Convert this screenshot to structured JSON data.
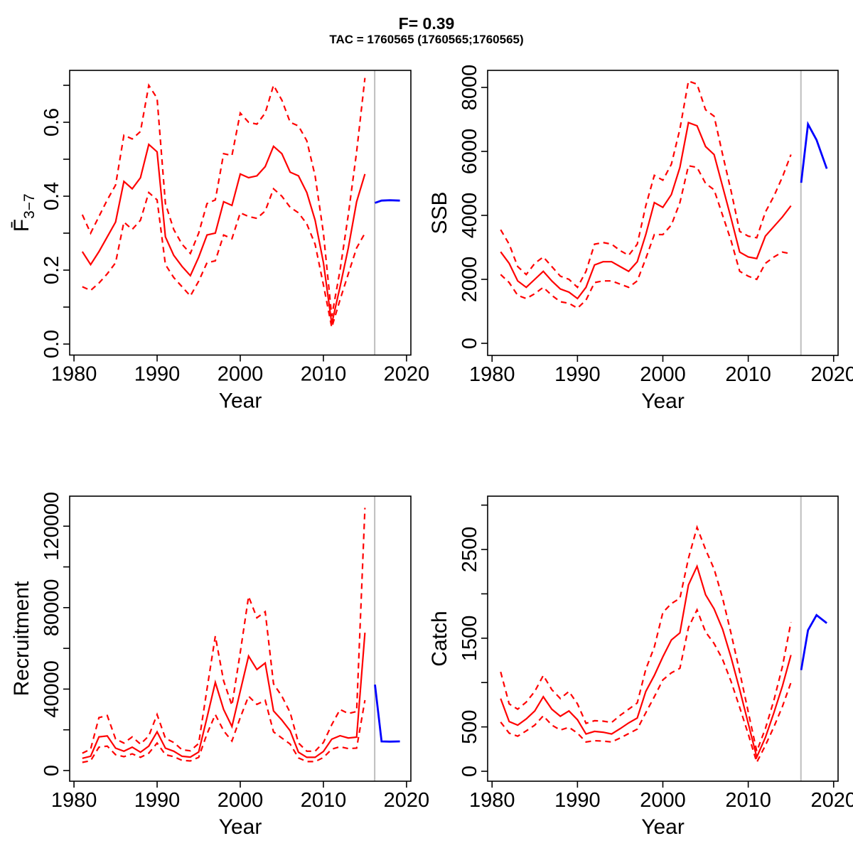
{
  "header": {
    "title": "F= 0.39",
    "subtitle": "TAC = 1760565 (1760565;1760565)"
  },
  "colors": {
    "assessment_red": "#ff0000",
    "forecast_blue": "#0000ff",
    "divider_gray": "#bebebe",
    "axis_black": "#000000",
    "background": "#ffffff"
  },
  "chart_data": [
    {
      "type": "line",
      "id": "f",
      "ylabel": "F̄",
      "ylabel_sub": "3−7",
      "xlabel": "Year",
      "legend": "none",
      "grid": "off",
      "xlim": [
        1979.48,
        2020.52
      ],
      "ylim": [
        -0.0298,
        0.7404
      ],
      "xticks": [
        1980,
        1990,
        2000,
        2010,
        2020
      ],
      "xtick_labels": [
        "1980",
        "1990",
        "2000",
        "2010",
        "2020"
      ],
      "yticks": [
        0,
        0.1,
        0.2,
        0.3,
        0.4,
        0.5,
        0.6,
        0.7
      ],
      "ytick_labels": [
        "0.0",
        "",
        "0.2",
        "",
        "0.4",
        "",
        "0.6",
        ""
      ],
      "divider_x": 2016.17,
      "years": [
        1981,
        1982,
        1983,
        1984,
        1985,
        1986,
        1987,
        1988,
        1989,
        1990,
        1991,
        1992,
        1993,
        1994,
        1995,
        1996,
        1997,
        1998,
        1999,
        2000,
        2001,
        2002,
        2003,
        2004,
        2005,
        2006,
        2007,
        2008,
        2009,
        2010,
        2011,
        2012,
        2013,
        2014,
        2015
      ],
      "series": [
        {
          "name": "median",
          "line": "solid",
          "color": "#ff0000",
          "values": [
            0.25,
            0.215,
            0.25,
            0.29,
            0.33,
            0.44,
            0.42,
            0.45,
            0.54,
            0.52,
            0.29,
            0.24,
            0.21,
            0.185,
            0.235,
            0.295,
            0.3,
            0.385,
            0.375,
            0.46,
            0.45,
            0.455,
            0.48,
            0.535,
            0.515,
            0.465,
            0.455,
            0.41,
            0.335,
            0.22,
            0.055,
            0.155,
            0.26,
            0.385,
            0.46
          ]
        },
        {
          "name": "lower-ci",
          "line": "dashed",
          "color": "#ff0000",
          "values": [
            0.155,
            0.145,
            0.165,
            0.19,
            0.22,
            0.33,
            0.31,
            0.335,
            0.41,
            0.39,
            0.215,
            0.18,
            0.155,
            0.13,
            0.17,
            0.22,
            0.225,
            0.295,
            0.285,
            0.355,
            0.345,
            0.34,
            0.36,
            0.42,
            0.4,
            0.37,
            0.355,
            0.325,
            0.27,
            0.16,
            0.045,
            0.12,
            0.19,
            0.26,
            0.3
          ]
        },
        {
          "name": "upper-ci",
          "line": "dashed",
          "color": "#ff0000",
          "values": [
            0.35,
            0.3,
            0.345,
            0.39,
            0.43,
            0.565,
            0.555,
            0.575,
            0.7,
            0.665,
            0.38,
            0.31,
            0.27,
            0.245,
            0.3,
            0.38,
            0.39,
            0.515,
            0.51,
            0.625,
            0.6,
            0.595,
            0.625,
            0.7,
            0.66,
            0.6,
            0.59,
            0.55,
            0.455,
            0.3,
            0.075,
            0.2,
            0.35,
            0.52,
            0.72
          ]
        }
      ],
      "projection": {
        "name": "forecast",
        "color": "#0000ff",
        "x": [
          2016.2,
          2017,
          2018,
          2019.2
        ],
        "values": [
          0.382,
          0.388,
          0.389,
          0.388
        ]
      }
    },
    {
      "type": "line",
      "id": "ssb",
      "ylabel": "SSB",
      "ylabel_sub": "",
      "xlabel": "Year",
      "legend": "none",
      "grid": "off",
      "xlim": [
        1979.48,
        2020.52
      ],
      "ylim": [
        -378,
        8533
      ],
      "xticks": [
        1980,
        1990,
        2000,
        2010,
        2020
      ],
      "xtick_labels": [
        "1980",
        "1990",
        "2000",
        "2010",
        "2020"
      ],
      "yticks": [
        0,
        2000,
        4000,
        6000,
        8000
      ],
      "ytick_labels": [
        "0",
        "2000",
        "4000",
        "6000",
        "8000"
      ],
      "divider_x": 2016.17,
      "years": [
        1981,
        1982,
        1983,
        1984,
        1985,
        1986,
        1987,
        1988,
        1989,
        1990,
        1991,
        1992,
        1993,
        1994,
        1995,
        1996,
        1997,
        1998,
        1999,
        2000,
        2001,
        2002,
        2003,
        2004,
        2005,
        2006,
        2007,
        2008,
        2009,
        2010,
        2011,
        2012,
        2013,
        2014,
        2015
      ],
      "series": [
        {
          "name": "median",
          "line": "solid",
          "color": "#ff0000",
          "values": [
            2860,
            2500,
            1950,
            1750,
            2000,
            2250,
            1950,
            1700,
            1600,
            1400,
            1750,
            2450,
            2550,
            2550,
            2400,
            2250,
            2550,
            3400,
            4400,
            4250,
            4650,
            5500,
            6900,
            6800,
            6150,
            5900,
            4900,
            3900,
            2850,
            2700,
            2650,
            3350,
            3650,
            3950,
            4300
          ]
        },
        {
          "name": "lower-ci",
          "line": "dashed",
          "color": "#ff0000",
          "values": [
            2150,
            1900,
            1500,
            1400,
            1550,
            1750,
            1500,
            1300,
            1250,
            1100,
            1350,
            1900,
            1950,
            1950,
            1850,
            1750,
            1950,
            2650,
            3400,
            3400,
            3700,
            4400,
            5550,
            5500,
            5000,
            4800,
            4000,
            3200,
            2250,
            2100,
            2000,
            2500,
            2700,
            2850,
            2800
          ]
        },
        {
          "name": "upper-ci",
          "line": "dashed",
          "color": "#ff0000",
          "values": [
            3550,
            3100,
            2400,
            2150,
            2500,
            2700,
            2400,
            2100,
            2000,
            1750,
            2250,
            3100,
            3150,
            3100,
            2900,
            2750,
            3100,
            4300,
            5250,
            5100,
            5600,
            6700,
            8200,
            8100,
            7300,
            7100,
            5900,
            4750,
            3500,
            3350,
            3300,
            4100,
            4600,
            5200,
            5900
          ]
        }
      ],
      "projection": {
        "name": "forecast",
        "color": "#0000ff",
        "x": [
          2016.2,
          2017,
          2018,
          2019.2
        ],
        "values": [
          5020,
          6850,
          6360,
          5460
        ]
      }
    },
    {
      "type": "line",
      "id": "rec",
      "ylabel": "Recruitment",
      "ylabel_sub": "",
      "xlabel": "Year",
      "legend": "none",
      "grid": "off",
      "xlim": [
        1979.48,
        2020.52
      ],
      "ylim": [
        -5236,
        134738
      ],
      "xticks": [
        1980,
        1990,
        2000,
        2010,
        2020
      ],
      "xtick_labels": [
        "1980",
        "1990",
        "2000",
        "2010",
        "2020"
      ],
      "yticks": [
        0,
        20000,
        40000,
        60000,
        80000,
        100000,
        120000
      ],
      "ytick_labels": [
        "0",
        "",
        "40000",
        "",
        "80000",
        "",
        "120000"
      ],
      "divider_x": 2016.17,
      "years": [
        1981,
        1982,
        1983,
        1984,
        1985,
        1986,
        1987,
        1988,
        1989,
        1990,
        1991,
        1992,
        1993,
        1994,
        1995,
        1996,
        1997,
        1998,
        1999,
        2000,
        2001,
        2002,
        2003,
        2004,
        2005,
        2006,
        2007,
        2008,
        2009,
        2010,
        2011,
        2012,
        2013,
        2014,
        2015
      ],
      "series": [
        {
          "name": "median",
          "line": "solid",
          "color": "#ff0000",
          "values": [
            6000,
            7000,
            16500,
            17000,
            11000,
            9500,
            11500,
            9000,
            12000,
            19000,
            11000,
            9500,
            7000,
            6600,
            9100,
            26000,
            43300,
            30000,
            21600,
            39000,
            56200,
            49600,
            52800,
            29300,
            24800,
            19500,
            9000,
            6500,
            6500,
            9400,
            15400,
            17100,
            16000,
            16400,
            67700
          ]
        },
        {
          "name": "lower-ci",
          "line": "dashed",
          "color": "#ff0000",
          "values": [
            4000,
            4800,
            11500,
            12000,
            7800,
            6800,
            8200,
            6500,
            8500,
            13500,
            7800,
            6800,
            5000,
            4700,
            6500,
            18000,
            27500,
            19500,
            14500,
            26000,
            36500,
            32500,
            34500,
            19000,
            16000,
            13000,
            6200,
            4400,
            4400,
            6400,
            10500,
            11700,
            10800,
            11000,
            34600
          ]
        },
        {
          "name": "upper-ci",
          "line": "dashed",
          "color": "#ff0000",
          "values": [
            8500,
            10500,
            26000,
            27000,
            15500,
            13500,
            16500,
            13000,
            17000,
            27500,
            15800,
            13800,
            10200,
            9700,
            13300,
            40000,
            66000,
            44000,
            32000,
            58000,
            85500,
            75000,
            78000,
            42600,
            36500,
            28500,
            13500,
            9500,
            9500,
            13800,
            22500,
            30000,
            28000,
            29000,
            129000
          ]
        }
      ],
      "projection": {
        "name": "forecast",
        "color": "#0000ff",
        "x": [
          2016.2,
          2017,
          2018,
          2019.2
        ],
        "values": [
          42200,
          14300,
          14200,
          14300
        ]
      }
    },
    {
      "type": "line",
      "id": "catch",
      "ylabel": "Catch",
      "ylabel_sub": "",
      "xlabel": "Year",
      "legend": "none",
      "grid": "off",
      "xlim": [
        1979.48,
        2020.52
      ],
      "ylim": [
        -112,
        3101
      ],
      "xticks": [
        1980,
        1990,
        2000,
        2010,
        2020
      ],
      "xtick_labels": [
        "1980",
        "1990",
        "2000",
        "2010",
        "2020"
      ],
      "yticks": [
        0,
        500,
        1000,
        1500,
        2000,
        2500,
        3000
      ],
      "ytick_labels": [
        "0",
        "500",
        "",
        "1500",
        "",
        "2500",
        ""
      ],
      "divider_x": 2016.17,
      "years": [
        1981,
        1982,
        1983,
        1984,
        1985,
        1986,
        1987,
        1988,
        1989,
        1990,
        1991,
        1992,
        1993,
        1994,
        1995,
        1996,
        1997,
        1998,
        1999,
        2000,
        2001,
        2002,
        2003,
        2004,
        2005,
        2006,
        2007,
        2008,
        2009,
        2010,
        2011,
        2012,
        2013,
        2014,
        2015
      ],
      "series": [
        {
          "name": "median",
          "line": "solid",
          "color": "#ff0000",
          "values": [
            820,
            560,
            520,
            590,
            680,
            840,
            700,
            620,
            680,
            580,
            420,
            450,
            440,
            420,
            480,
            545,
            600,
            900,
            1080,
            1290,
            1480,
            1560,
            2100,
            2310,
            1990,
            1830,
            1600,
            1280,
            920,
            540,
            160,
            380,
            660,
            960,
            1310
          ]
        },
        {
          "name": "lower-ci",
          "line": "dashed",
          "color": "#ff0000",
          "values": [
            555,
            430,
            395,
            455,
            520,
            625,
            520,
            465,
            495,
            430,
            330,
            345,
            340,
            330,
            375,
            425,
            475,
            660,
            840,
            1030,
            1110,
            1160,
            1620,
            1820,
            1570,
            1440,
            1260,
            1010,
            720,
            420,
            100,
            290,
            500,
            730,
            1000
          ]
        },
        {
          "name": "upper-ci",
          "line": "dashed",
          "color": "#ff0000",
          "values": [
            1120,
            760,
            700,
            780,
            900,
            1080,
            920,
            820,
            900,
            760,
            540,
            570,
            565,
            550,
            630,
            700,
            770,
            1150,
            1400,
            1790,
            1890,
            1950,
            2400,
            2750,
            2500,
            2280,
            1950,
            1550,
            1120,
            670,
            225,
            480,
            800,
            1180,
            1680
          ]
        }
      ],
      "projection": {
        "name": "forecast",
        "color": "#0000ff",
        "x": [
          2016.2,
          2017,
          2018,
          2019.2
        ],
        "values": [
          1140,
          1590,
          1760,
          1670
        ]
      }
    }
  ]
}
